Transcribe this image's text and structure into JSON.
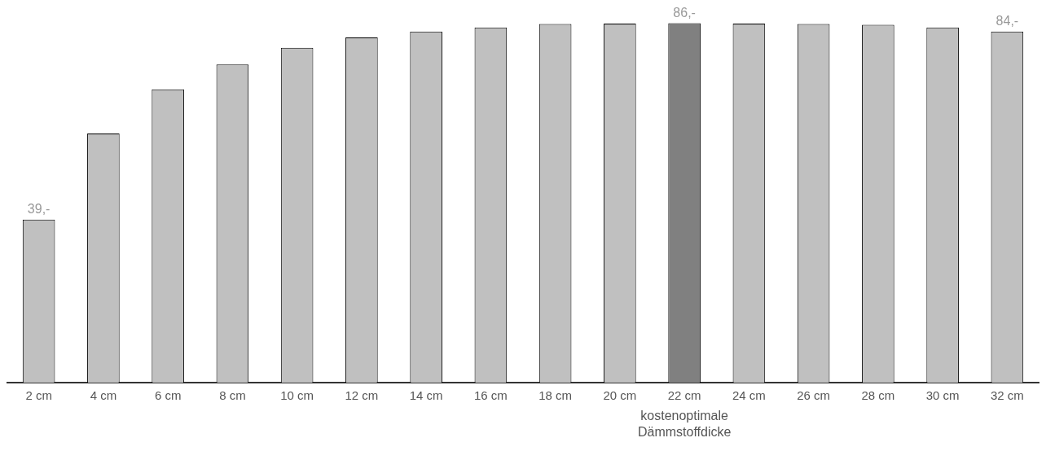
{
  "chart_data": {
    "type": "bar",
    "categories": [
      "2 cm",
      "4 cm",
      "6 cm",
      "8 cm",
      "10 cm",
      "12 cm",
      "14 cm",
      "16 cm",
      "18 cm",
      "20 cm",
      "22 cm",
      "24 cm",
      "26 cm",
      "28 cm",
      "30 cm",
      "32 cm"
    ],
    "values": [
      39,
      59.6,
      70.2,
      76.1,
      80.1,
      82.6,
      84.0,
      85.0,
      85.8,
      85.9,
      86,
      85.9,
      85.8,
      85.6,
      85.0,
      84
    ],
    "value_labels": [
      "39,-",
      null,
      null,
      null,
      null,
      null,
      null,
      null,
      null,
      null,
      "86,-",
      null,
      null,
      null,
      null,
      "84,-"
    ],
    "colors": [
      "#c0c0c0",
      "#c0c0c0",
      "#c0c0c0",
      "#c0c0c0",
      "#c0c0c0",
      "#c0c0c0",
      "#c0c0c0",
      "#c0c0c0",
      "#c0c0c0",
      "#c0c0c0",
      "#808080",
      "#c0c0c0",
      "#c0c0c0",
      "#c0c0c0",
      "#c0c0c0",
      "#c0c0c0"
    ],
    "tick_labels": "x",
    "grid": false,
    "legend": false,
    "annotations": [
      "kostenoptimale Dämmstoffdicke"
    ]
  }
}
